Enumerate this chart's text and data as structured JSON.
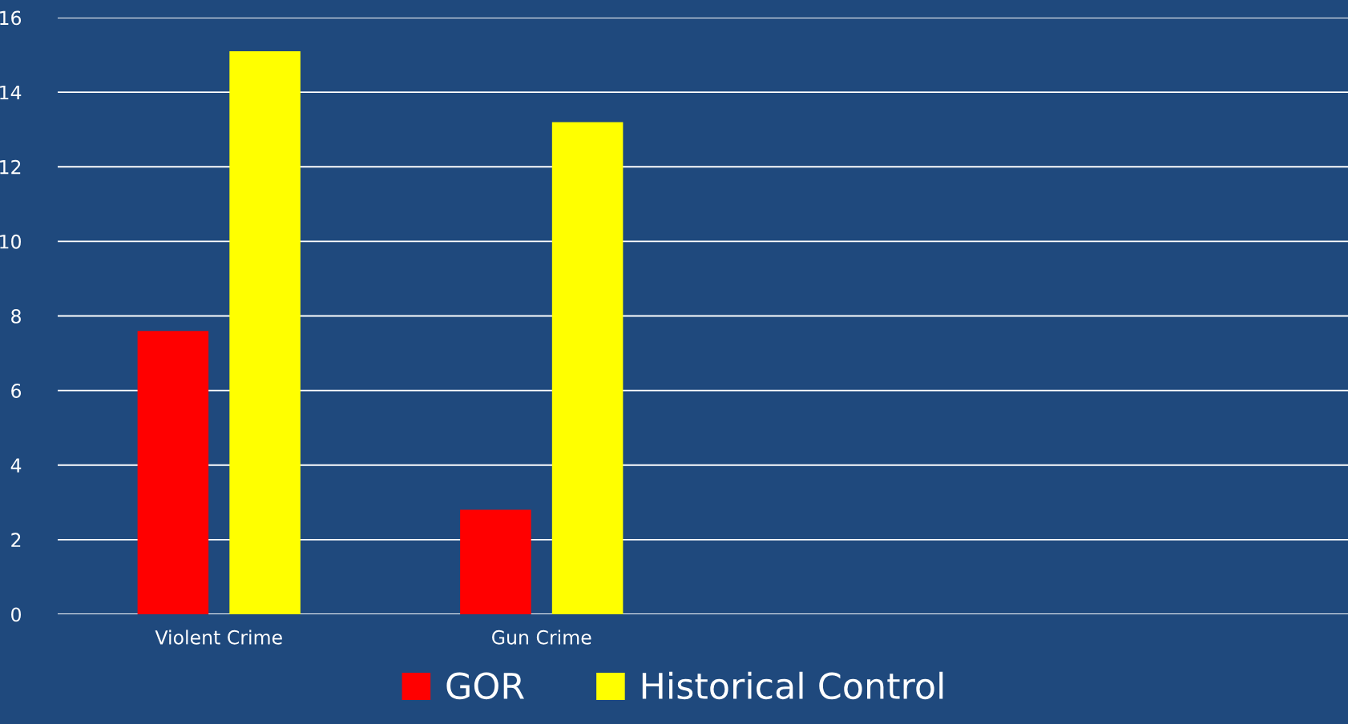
{
  "chart_data": {
    "type": "bar",
    "categories": [
      "Violent Crime",
      "Gun Crime",
      null,
      null
    ],
    "series": [
      {
        "name": "GOR",
        "color": "#ff0000",
        "values": [
          7.6,
          2.8,
          null,
          null
        ]
      },
      {
        "name": "Historical Control",
        "color": "#ffff00",
        "values": [
          15.1,
          13.2,
          null,
          null
        ]
      }
    ],
    "ylim": [
      0,
      16
    ],
    "yticks": [
      0,
      2,
      4,
      6,
      8,
      10,
      12,
      14,
      16
    ],
    "grid": "y",
    "legend": "bottom"
  }
}
